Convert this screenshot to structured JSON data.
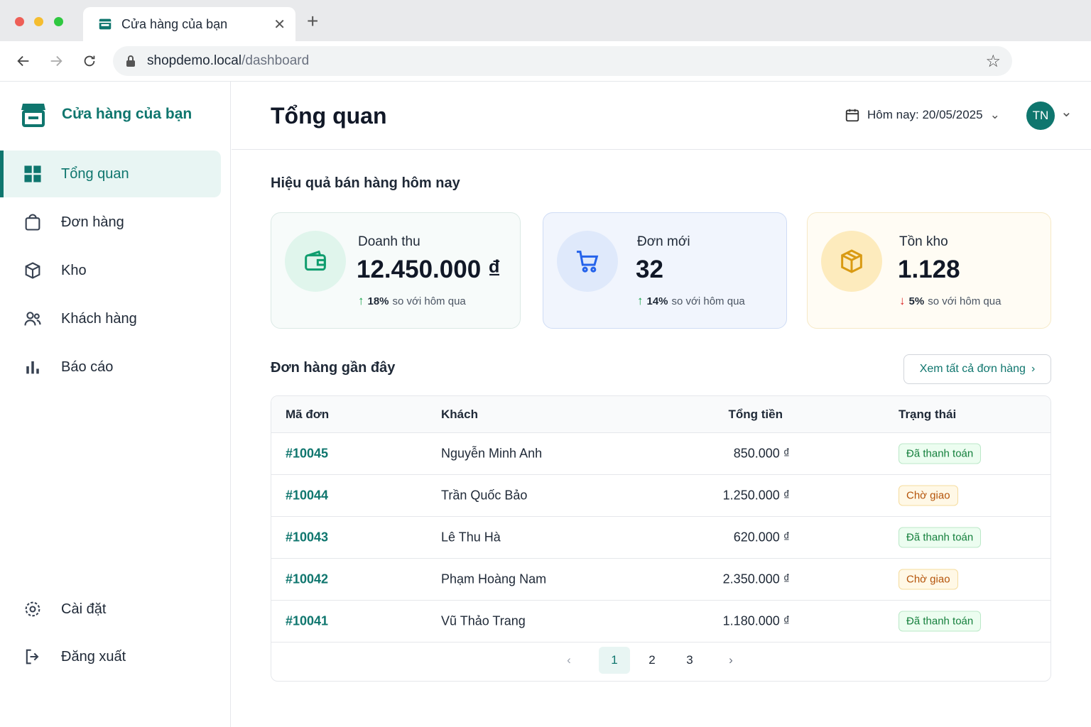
{
  "browser": {
    "tab_title": "Cửa hàng của bạn",
    "url_host": "shopdemo.local",
    "url_path": "/dashboard"
  },
  "sidebar": {
    "brand": "Cửa hàng của bạn",
    "nav": [
      "Tổng quan",
      "Đơn hàng",
      "Kho",
      "Khách hàng",
      "Báo cáo"
    ],
    "bottom": [
      "Cài đặt",
      "Đăng xuất"
    ]
  },
  "header": {
    "title": "Tổng quan",
    "date": "Hôm nay: 20/05/2025",
    "avatar": "TN"
  },
  "stats": {
    "title": "Hiệu quả bán hàng hôm nay",
    "cards": [
      {
        "label": "Doanh thu",
        "value": "12.450.000 ₫",
        "change": "18%",
        "note": "so với hôm qua"
      },
      {
        "label": "Đơn mới",
        "value": "32",
        "change": "14%",
        "note": "so với hôm qua"
      },
      {
        "label": "Tồn kho",
        "value": "1.128",
        "change": "5%",
        "note": "so với hôm qua"
      }
    ]
  },
  "orders": {
    "title": "Đơn hàng gần đây",
    "link": "Xem tất cả đơn hàng",
    "table": {
      "headers": [
        "Mã đơn",
        "Khách",
        "Tổng tiền",
        "Trạng thái"
      ],
      "rows": [
        [
          "#10045",
          "Nguyễn Minh Anh",
          "850.000 ₫",
          "Đã thanh toán"
        ],
        [
          "#10044",
          "Trần Quốc Bảo",
          "1.250.000 ₫",
          "Chờ giao"
        ],
        [
          "#10043",
          "Lê Thu Hà",
          "620.000 ₫",
          "Đã thanh toán"
        ],
        [
          "#10042",
          "Phạm Hoàng Nam",
          "2.350.000 ₫",
          "Chờ giao"
        ],
        [
          "#10041",
          "Vũ Thảo Trang",
          "1.180.000 ₫",
          "Đã thanh toán"
        ]
      ]
    },
    "pages": [
      "1",
      "2",
      "3"
    ]
  }
}
